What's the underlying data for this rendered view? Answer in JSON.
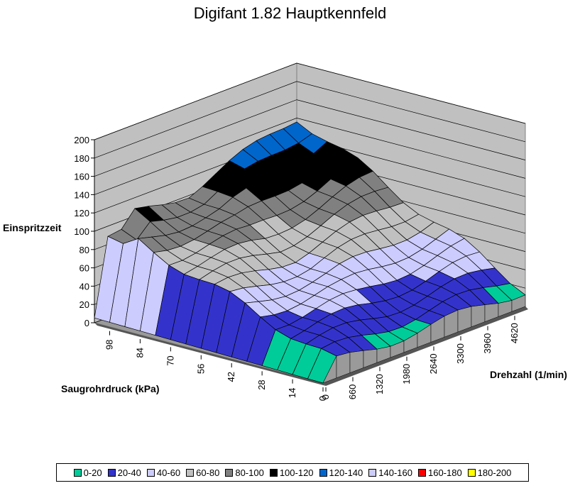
{
  "chart_data": {
    "type": "surface-3d",
    "title": "Digifant 1.82 Hauptkennfeld",
    "zlabel": "Einspritzzeit",
    "xlabel": "Saugrohrdruck (kPa)",
    "ylabel": "Drehzahl (1/min)",
    "z_ticks": [
      "0",
      "20",
      "40",
      "60",
      "80",
      "100",
      "120",
      "140",
      "160",
      "180",
      "200"
    ],
    "pressure_ticks": [
      "98",
      "84",
      "70",
      "56",
      "42",
      "28",
      "14",
      "0"
    ],
    "rpm_ticks": [
      "0",
      "660",
      "1320",
      "1980",
      "2640",
      "3300",
      "3960",
      "4620"
    ],
    "zlim": [
      0,
      200
    ],
    "pressure_values": [
      105,
      98,
      91,
      84,
      77,
      70,
      63,
      56,
      49,
      42,
      35,
      28,
      21,
      14,
      7,
      0
    ],
    "rpm_values": [
      0,
      330,
      660,
      990,
      1320,
      1650,
      1980,
      2310,
      2640,
      2970,
      3300,
      3630,
      3960,
      4290,
      4620,
      4950
    ],
    "legend": [
      {
        "label": "0-20",
        "color": "#00CC99"
      },
      {
        "label": "20-40",
        "color": "#3333CC"
      },
      {
        "label": "40-60",
        "color": "#CCCCFF"
      },
      {
        "label": "60-80",
        "color": "#C0C0C0"
      },
      {
        "label": "80-100",
        "color": "#808080"
      },
      {
        "label": "100-120",
        "color": "#000000"
      },
      {
        "label": "120-140",
        "color": "#0066CC"
      },
      {
        "label": "140-160",
        "color": "#CCCCFF"
      },
      {
        "label": "160-180",
        "color": "#FF0000"
      },
      {
        "label": "180-200",
        "color": "#FFFF00"
      }
    ],
    "grid": true,
    "legend_position": "bottom"
  }
}
